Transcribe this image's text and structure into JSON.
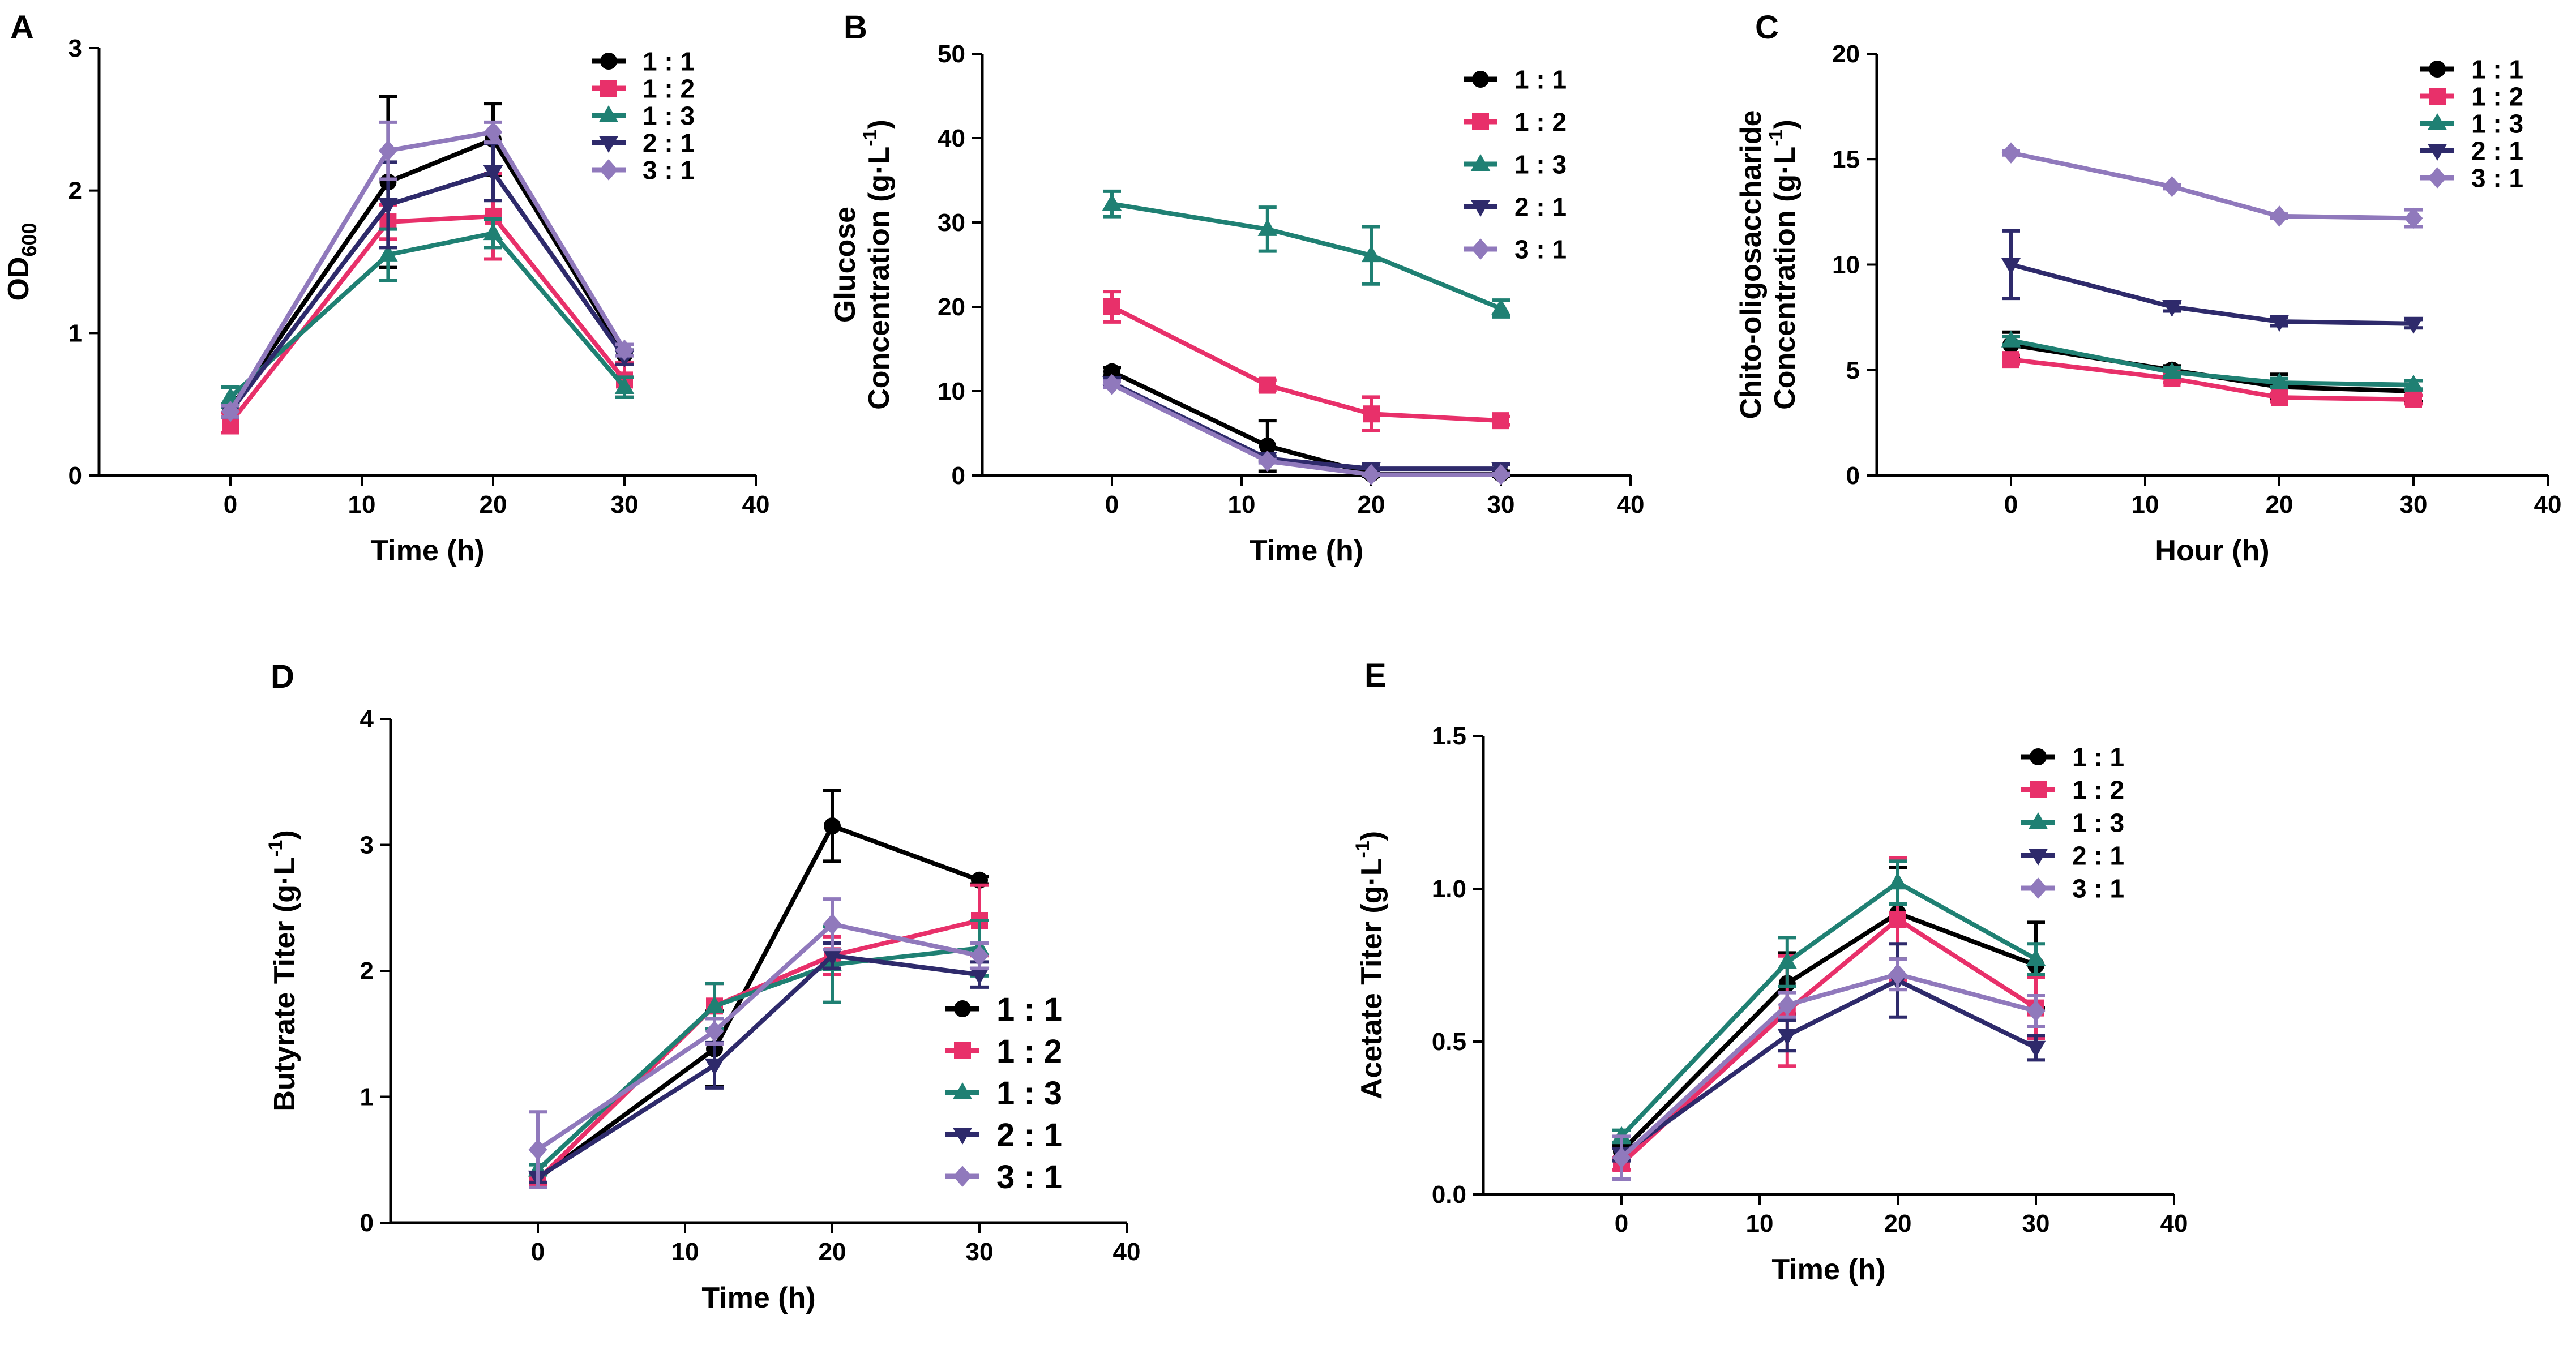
{
  "figure": {
    "colors": {
      "1 : 1": "#000000",
      "1 : 2": "#e8306a",
      "1 : 3": "#1f8073",
      "2 : 1": "#2e2a6b",
      "3 : 1": "#9079bc"
    },
    "markers": {
      "1 : 1": "circle",
      "1 : 2": "square",
      "1 : 3": "triangle-up",
      "2 : 1": "triangle-down",
      "3 : 1": "diamond"
    }
  },
  "chart_data": [
    {
      "id": "A",
      "panel_label": "A",
      "type": "line",
      "title": "",
      "xlabel": "Time (h)",
      "ylabel_main": "OD",
      "ylabel_sub": "600",
      "xlim": [
        -10,
        40
      ],
      "ylim": [
        0,
        3
      ],
      "xticks": [
        0,
        10,
        20,
        30,
        40
      ],
      "yticks": [
        0,
        1,
        2,
        3
      ],
      "x": [
        0,
        12,
        20,
        30
      ],
      "series": [
        {
          "name": "1 : 1",
          "values": [
            0.47,
            2.06,
            2.36,
            0.85
          ],
          "errors": [
            0.03,
            0.6,
            0.25,
            0.07
          ]
        },
        {
          "name": "1 : 2",
          "values": [
            0.37,
            1.78,
            1.82,
            0.67
          ],
          "errors": [
            0.07,
            0.12,
            0.3,
            0.12
          ]
        },
        {
          "name": "1 : 3",
          "values": [
            0.55,
            1.55,
            1.7,
            0.62
          ],
          "errors": [
            0.07,
            0.18,
            0.1,
            0.07
          ]
        },
        {
          "name": "2 : 1",
          "values": [
            0.45,
            1.9,
            2.13,
            0.83
          ],
          "errors": [
            0.04,
            0.3,
            0.2,
            0.05
          ]
        },
        {
          "name": "3 : 1",
          "values": [
            0.45,
            2.28,
            2.41,
            0.88
          ],
          "errors": [
            0.04,
            0.2,
            0.07,
            0.04
          ]
        }
      ]
    },
    {
      "id": "B",
      "panel_label": "B",
      "type": "line",
      "title": "",
      "xlabel": "Time (h)",
      "ylabel_lines": [
        "Glucose",
        "Concentration (g·L"
      ],
      "ylabel_sup": "-1",
      "ylabel_close": ")",
      "xlim": [
        -10,
        40
      ],
      "ylim": [
        0,
        50
      ],
      "xticks": [
        0,
        10,
        20,
        30,
        40
      ],
      "yticks": [
        0,
        10,
        20,
        30,
        40,
        50
      ],
      "x": [
        0,
        12,
        20,
        30
      ],
      "series": [
        {
          "name": "1 : 1",
          "values": [
            12.3,
            3.5,
            0.2,
            0.2
          ],
          "errors": [
            0.5,
            3.0,
            0.3,
            0.3
          ]
        },
        {
          "name": "1 : 2",
          "values": [
            20.0,
            10.7,
            7.3,
            6.5
          ],
          "errors": [
            1.8,
            0.6,
            2.0,
            0.5
          ]
        },
        {
          "name": "1 : 3",
          "values": [
            32.2,
            29.2,
            26.1,
            19.8
          ],
          "errors": [
            1.5,
            2.6,
            3.4,
            1.0
          ]
        },
        {
          "name": "2 : 1",
          "values": [
            11.0,
            2.0,
            0.8,
            0.8
          ],
          "errors": [
            0.5,
            0.3,
            0.5,
            0.5
          ]
        },
        {
          "name": "3 : 1",
          "values": [
            10.8,
            1.7,
            0.1,
            0.1
          ],
          "errors": [
            0.4,
            0.2,
            0.1,
            0.1
          ]
        }
      ]
    },
    {
      "id": "C",
      "panel_label": "C",
      "type": "line",
      "title": "",
      "xlabel": "Hour (h)",
      "ylabel_lines": [
        "Chito-oligosaccharide",
        "Concentration (g·L"
      ],
      "ylabel_sup": "-1",
      "ylabel_close": ")",
      "xlim": [
        -10,
        40
      ],
      "ylim": [
        0,
        20
      ],
      "xticks": [
        0,
        10,
        20,
        30,
        40
      ],
      "yticks": [
        0,
        5,
        10,
        15,
        20
      ],
      "x": [
        0,
        12,
        20,
        30
      ],
      "series": [
        {
          "name": "1 : 1",
          "values": [
            6.2,
            5.0,
            4.2,
            4.0
          ],
          "errors": [
            0.6,
            0.2,
            0.6,
            0.5
          ]
        },
        {
          "name": "1 : 2",
          "values": [
            5.5,
            4.6,
            3.7,
            3.6
          ],
          "errors": [
            0.2,
            0.2,
            0.2,
            0.2
          ]
        },
        {
          "name": "1 : 3",
          "values": [
            6.4,
            4.9,
            4.4,
            4.3
          ],
          "errors": [
            0.2,
            0.2,
            0.2,
            0.2
          ]
        },
        {
          "name": "2 : 1",
          "values": [
            10.0,
            8.0,
            7.3,
            7.2
          ],
          "errors": [
            1.6,
            0.2,
            0.2,
            0.2
          ]
        },
        {
          "name": "3 : 1",
          "values": [
            15.3,
            13.7,
            12.3,
            12.2
          ],
          "errors": [
            0.1,
            0.1,
            0.1,
            0.4
          ]
        }
      ]
    },
    {
      "id": "D",
      "panel_label": "D",
      "type": "line",
      "title": "",
      "xlabel": "Time (h)",
      "ylabel_main": "Butyrate Titer (g·L",
      "ylabel_sup": "-1",
      "ylabel_close": ")",
      "xlim": [
        -10,
        40
      ],
      "ylim": [
        0,
        4
      ],
      "xticks": [
        0,
        10,
        20,
        30,
        40
      ],
      "yticks": [
        0,
        1,
        2,
        3,
        4
      ],
      "x": [
        0,
        12,
        20,
        30
      ],
      "series": [
        {
          "name": "1 : 1",
          "values": [
            0.35,
            1.38,
            3.15,
            2.72
          ],
          "errors": [
            0.04,
            0.3,
            0.28,
            0.03
          ]
        },
        {
          "name": "1 : 2",
          "values": [
            0.34,
            1.72,
            2.12,
            2.4
          ],
          "errors": [
            0.04,
            0.18,
            0.15,
            0.28
          ]
        },
        {
          "name": "1 : 3",
          "values": [
            0.42,
            1.72,
            2.05,
            2.18
          ],
          "errors": [
            0.04,
            0.18,
            0.3,
            0.22
          ]
        },
        {
          "name": "2 : 1",
          "values": [
            0.36,
            1.25,
            2.12,
            1.97
          ],
          "errors": [
            0.04,
            0.18,
            0.1,
            0.1
          ]
        },
        {
          "name": "3 : 1",
          "values": [
            0.58,
            1.52,
            2.37,
            2.12
          ],
          "errors": [
            0.3,
            0.1,
            0.2,
            0.1
          ]
        }
      ]
    },
    {
      "id": "E",
      "panel_label": "E",
      "type": "line",
      "title": "",
      "xlabel": "Time (h)",
      "ylabel_main": "Acetate Titer (g·L",
      "ylabel_sup": "-1",
      "ylabel_close": ")",
      "xlim": [
        -10,
        40
      ],
      "ylim": [
        0,
        1.5
      ],
      "xticks": [
        0,
        10,
        20,
        30,
        40
      ],
      "yticks": [
        0.0,
        0.5,
        1.0,
        1.5
      ],
      "ytick_labels": [
        "0.0",
        "0.5",
        "1.0",
        "1.5"
      ],
      "x": [
        0,
        12,
        20,
        30
      ],
      "series": [
        {
          "name": "1 : 1",
          "values": [
            0.14,
            0.69,
            0.92,
            0.75
          ],
          "errors": [
            0.02,
            0.1,
            0.15,
            0.14
          ]
        },
        {
          "name": "1 : 2",
          "values": [
            0.1,
            0.6,
            0.9,
            0.61
          ],
          "errors": [
            0.02,
            0.18,
            0.2,
            0.1
          ]
        },
        {
          "name": "1 : 3",
          "values": [
            0.19,
            0.76,
            1.02,
            0.77
          ],
          "errors": [
            0.02,
            0.08,
            0.07,
            0.05
          ]
        },
        {
          "name": "2 : 1",
          "values": [
            0.13,
            0.52,
            0.7,
            0.48
          ],
          "errors": [
            0.02,
            0.05,
            0.12,
            0.04
          ]
        },
        {
          "name": "3 : 1",
          "values": [
            0.12,
            0.62,
            0.72,
            0.6
          ],
          "errors": [
            0.07,
            0.04,
            0.05,
            0.05
          ]
        }
      ]
    }
  ]
}
